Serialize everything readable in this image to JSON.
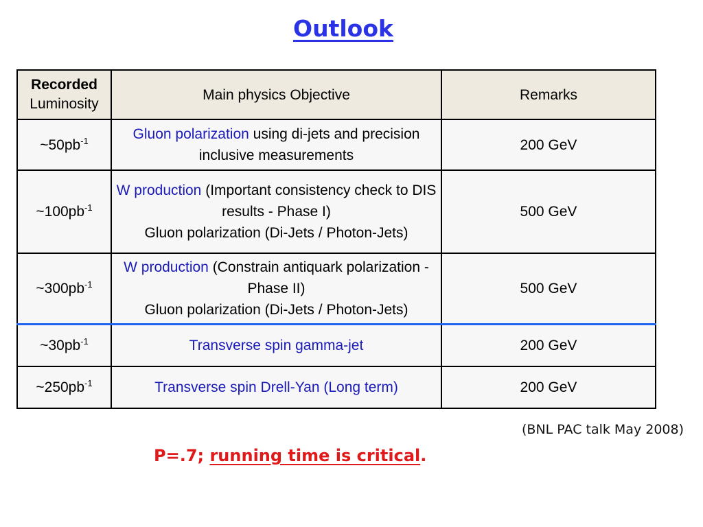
{
  "title": "Outlook",
  "table": {
    "header": {
      "col1_line1": "Recorded",
      "col1_line2": "Luminosity",
      "col2": "Main physics Objective",
      "col3": "Remarks"
    },
    "rows": [
      {
        "lum": "~50pb",
        "lum_exp": "-1",
        "obj_blue": "Gluon polarization",
        "obj_rest": " using di-jets and precision inclusive measurements",
        "obj_line2": "",
        "remark": "200 GeV"
      },
      {
        "lum": "~100pb",
        "lum_exp": "-1",
        "obj_blue": "W production",
        "obj_rest": " (Important consistency check to DIS results - Phase I)",
        "obj_line2": "Gluon polarization (Di-Jets / Photon-Jets)",
        "remark": "500 GeV"
      },
      {
        "lum": "~300pb",
        "lum_exp": "-1",
        "obj_blue": "W production",
        "obj_rest": " (Constrain antiquark polarization - Phase II)",
        "obj_line2": "Gluon polarization (Di-Jets / Photon-Jets)",
        "remark": "500 GeV"
      },
      {
        "lum": "~30pb",
        "lum_exp": "-1",
        "obj_blue": "Transverse spin gamma-jet",
        "obj_rest": "",
        "obj_line2": "",
        "remark": "200 GeV"
      },
      {
        "lum": "~250pb",
        "lum_exp": "-1",
        "obj_blue": "Transverse spin Drell-Yan (Long term)",
        "obj_rest": "",
        "obj_line2": "",
        "remark": "200 GeV"
      }
    ]
  },
  "note": "(BNL PAC talk  May 2008)",
  "footer": {
    "prefix": "P=.7; ",
    "underlined": "running time is critical",
    "suffix": "."
  },
  "colors": {
    "title": "#2a33e6",
    "objective_highlight": "#1a1ab8",
    "separator": "#1e64f0",
    "footer": "#e01a1a",
    "header_bg": "#eeeae0"
  }
}
